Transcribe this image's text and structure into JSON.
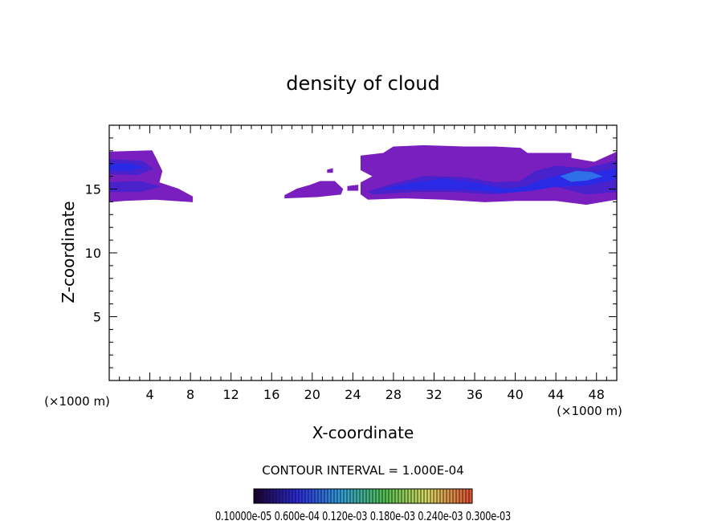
{
  "chart_data": {
    "type": "heatmap",
    "title": "density of cloud",
    "xlabel": "X-coordinate",
    "ylabel": "Z-coordinate",
    "x_unit_left": "(×1000 m)",
    "x_unit_right": "(×1000 m)",
    "xlim": [
      0,
      50
    ],
    "ylim": [
      0,
      20
    ],
    "x_ticks": [
      4,
      8,
      12,
      16,
      20,
      24,
      28,
      32,
      36,
      40,
      44,
      48
    ],
    "y_ticks": [
      5,
      10,
      15
    ],
    "x_tick_labels": [
      "4",
      "8",
      "12",
      "16",
      "20",
      "24",
      "28",
      "32",
      "36",
      "40",
      "44",
      "48"
    ],
    "y_tick_labels": [
      "5",
      "10",
      "15"
    ],
    "contour_interval_text": "CONTOUR INTERVAL = 1.000E-04",
    "colorbar_labels_text": "0.10000e-05 0.600e-04 0.120e-03 0.180e-03 0.240e-03 0.300e-03",
    "colorbar_colors": [
      "#1a0033",
      "#2a2ae0",
      "#2f9fd8",
      "#4fc04f",
      "#d8d860",
      "#e05030"
    ],
    "levels": [
      {
        "name": "outer",
        "color": "#7a1fbf"
      },
      {
        "name": "mid",
        "color": "#4a22cc"
      },
      {
        "name": "inner",
        "color": "#2a2ae6"
      },
      {
        "name": "core",
        "color": "#2f6fe8"
      }
    ],
    "regions": [
      {
        "level": 0,
        "points": [
          [
            0,
            17.9
          ],
          [
            4.2,
            18
          ],
          [
            4.6,
            17.4
          ],
          [
            5.2,
            16.4
          ],
          [
            4.9,
            15.5
          ],
          [
            6.8,
            15
          ],
          [
            8.2,
            14.4
          ],
          [
            8.2,
            14.0
          ],
          [
            4.5,
            14.2
          ],
          [
            1.5,
            14.1
          ],
          [
            0,
            14.0
          ]
        ]
      },
      {
        "level": 1,
        "points": [
          [
            0,
            17.3
          ],
          [
            3.2,
            17.2
          ],
          [
            4.3,
            16.6
          ],
          [
            2.8,
            16.1
          ],
          [
            0,
            16.2
          ]
        ]
      },
      {
        "level": 1,
        "points": [
          [
            0,
            15.5
          ],
          [
            3,
            15.6
          ],
          [
            5,
            15.2
          ],
          [
            3,
            14.8
          ],
          [
            0,
            14.8
          ]
        ]
      },
      {
        "level": 2,
        "points": [
          [
            0,
            17.0
          ],
          [
            2.2,
            16.95
          ],
          [
            3.4,
            16.7
          ],
          [
            2.0,
            16.45
          ],
          [
            0,
            16.5
          ]
        ]
      },
      {
        "level": 0,
        "points": [
          [
            17.3,
            14.5
          ],
          [
            18.5,
            15.0
          ],
          [
            19.8,
            15.3
          ],
          [
            20.8,
            15.6
          ],
          [
            22.2,
            15.6
          ],
          [
            23.0,
            15.0
          ],
          [
            22.8,
            14.6
          ],
          [
            20.5,
            14.4
          ],
          [
            17.3,
            14.3
          ]
        ]
      },
      {
        "level": 0,
        "points": [
          [
            24.8,
            17.6
          ],
          [
            27,
            17.8
          ],
          [
            28,
            18.3
          ],
          [
            31,
            18.4
          ],
          [
            35,
            18.3
          ],
          [
            38,
            18.3
          ],
          [
            40.5,
            18.2
          ],
          [
            41.2,
            17.8
          ],
          [
            45.5,
            17.8
          ],
          [
            45.5,
            17.4
          ],
          [
            47.8,
            17.1
          ],
          [
            50,
            17.9
          ],
          [
            50,
            14.2
          ],
          [
            47,
            13.8
          ],
          [
            44,
            14.1
          ],
          [
            40,
            14.1
          ],
          [
            37,
            14.0
          ],
          [
            33,
            14.2
          ],
          [
            29,
            14.3
          ],
          [
            25.5,
            14.2
          ],
          [
            24.8,
            14.6
          ],
          [
            24.8,
            15.5
          ],
          [
            26,
            16.0
          ],
          [
            24.8,
            16.5
          ],
          [
            24.8,
            17.0
          ]
        ]
      },
      {
        "level": 1,
        "points": [
          [
            25.5,
            14.8
          ],
          [
            28,
            15.4
          ],
          [
            31,
            16.0
          ],
          [
            35,
            15.9
          ],
          [
            38,
            15.5
          ],
          [
            40.5,
            15.6
          ],
          [
            42,
            16.4
          ],
          [
            44,
            16.8
          ],
          [
            47,
            16.6
          ],
          [
            50,
            17.2
          ],
          [
            50,
            14.8
          ],
          [
            47,
            14.6
          ],
          [
            45,
            15.0
          ],
          [
            43,
            15.4
          ],
          [
            41,
            14.9
          ],
          [
            38,
            14.6
          ],
          [
            34,
            14.8
          ],
          [
            30,
            14.8
          ],
          [
            26,
            14.6
          ]
        ]
      },
      {
        "level": 2,
        "points": [
          [
            27,
            15.0
          ],
          [
            30,
            15.5
          ],
          [
            33,
            15.8
          ],
          [
            36,
            15.5
          ],
          [
            39,
            15.0
          ],
          [
            41,
            15.2
          ],
          [
            43,
            15.8
          ],
          [
            45,
            16.2
          ],
          [
            48,
            16.3
          ],
          [
            50,
            16.6
          ],
          [
            50,
            15.8
          ],
          [
            47,
            15.3
          ],
          [
            44,
            15.2
          ],
          [
            41.5,
            14.9
          ],
          [
            39,
            14.7
          ],
          [
            35,
            15.0
          ],
          [
            31,
            15.0
          ]
        ]
      },
      {
        "level": 3,
        "points": [
          [
            44.5,
            16.0
          ],
          [
            46,
            16.4
          ],
          [
            47.5,
            16.3
          ],
          [
            48.5,
            16.0
          ],
          [
            47,
            15.7
          ],
          [
            45.5,
            15.6
          ]
        ]
      },
      {
        "level": 0,
        "points": [
          [
            23.5,
            15.2
          ],
          [
            24.5,
            15.3
          ],
          [
            24.5,
            14.9
          ],
          [
            23.5,
            14.9
          ]
        ]
      },
      {
        "level": 0,
        "points": [
          [
            21.5,
            16.5
          ],
          [
            22,
            16.6
          ],
          [
            22,
            16.3
          ],
          [
            21.5,
            16.3
          ]
        ]
      }
    ]
  }
}
